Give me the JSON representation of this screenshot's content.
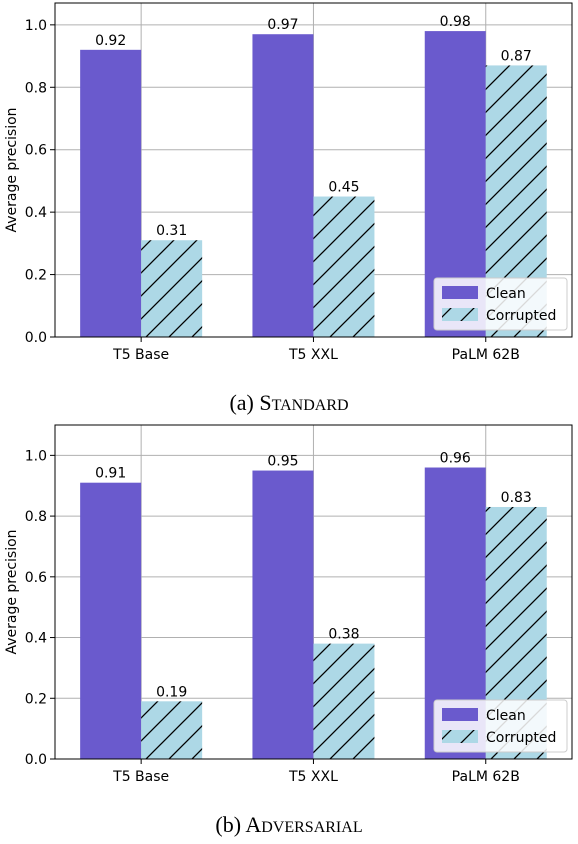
{
  "chart_data": [
    {
      "type": "bar",
      "caption": {
        "prefix": "(a) ",
        "first": "S",
        "rest": "TANDARD"
      },
      "categories": [
        "T5 Base",
        "T5 XXL",
        "PaLM 62B"
      ],
      "series": [
        {
          "name": "Clean",
          "values": [
            0.92,
            0.97,
            0.98
          ]
        },
        {
          "name": "Corrupted",
          "values": [
            0.31,
            0.45,
            0.87
          ]
        }
      ],
      "ylabel": "Average precision",
      "ylim": [
        0,
        1.07
      ],
      "yticks": [
        "0.0",
        "0.2",
        "0.4",
        "0.6",
        "0.8",
        "1.0"
      ],
      "grid": true,
      "legend": "bottom-right"
    },
    {
      "type": "bar",
      "caption": {
        "prefix": "(b) ",
        "first": "A",
        "rest": "DVERSARIAL"
      },
      "categories": [
        "T5 Base",
        "T5 XXL",
        "PaLM 62B"
      ],
      "series": [
        {
          "name": "Clean",
          "values": [
            0.91,
            0.95,
            0.96
          ]
        },
        {
          "name": "Corrupted",
          "values": [
            0.19,
            0.38,
            0.83
          ]
        }
      ],
      "ylabel": "Average precision",
      "ylim": [
        0,
        1.1
      ],
      "yticks": [
        "0.0",
        "0.2",
        "0.4",
        "0.6",
        "0.8",
        "1.0"
      ],
      "grid": true,
      "legend": "bottom-right"
    }
  ],
  "colors": {
    "clean": "#6a5acd",
    "corrupted": "#add8e6",
    "grid": "#b0b0b0",
    "axis": "#000000"
  }
}
